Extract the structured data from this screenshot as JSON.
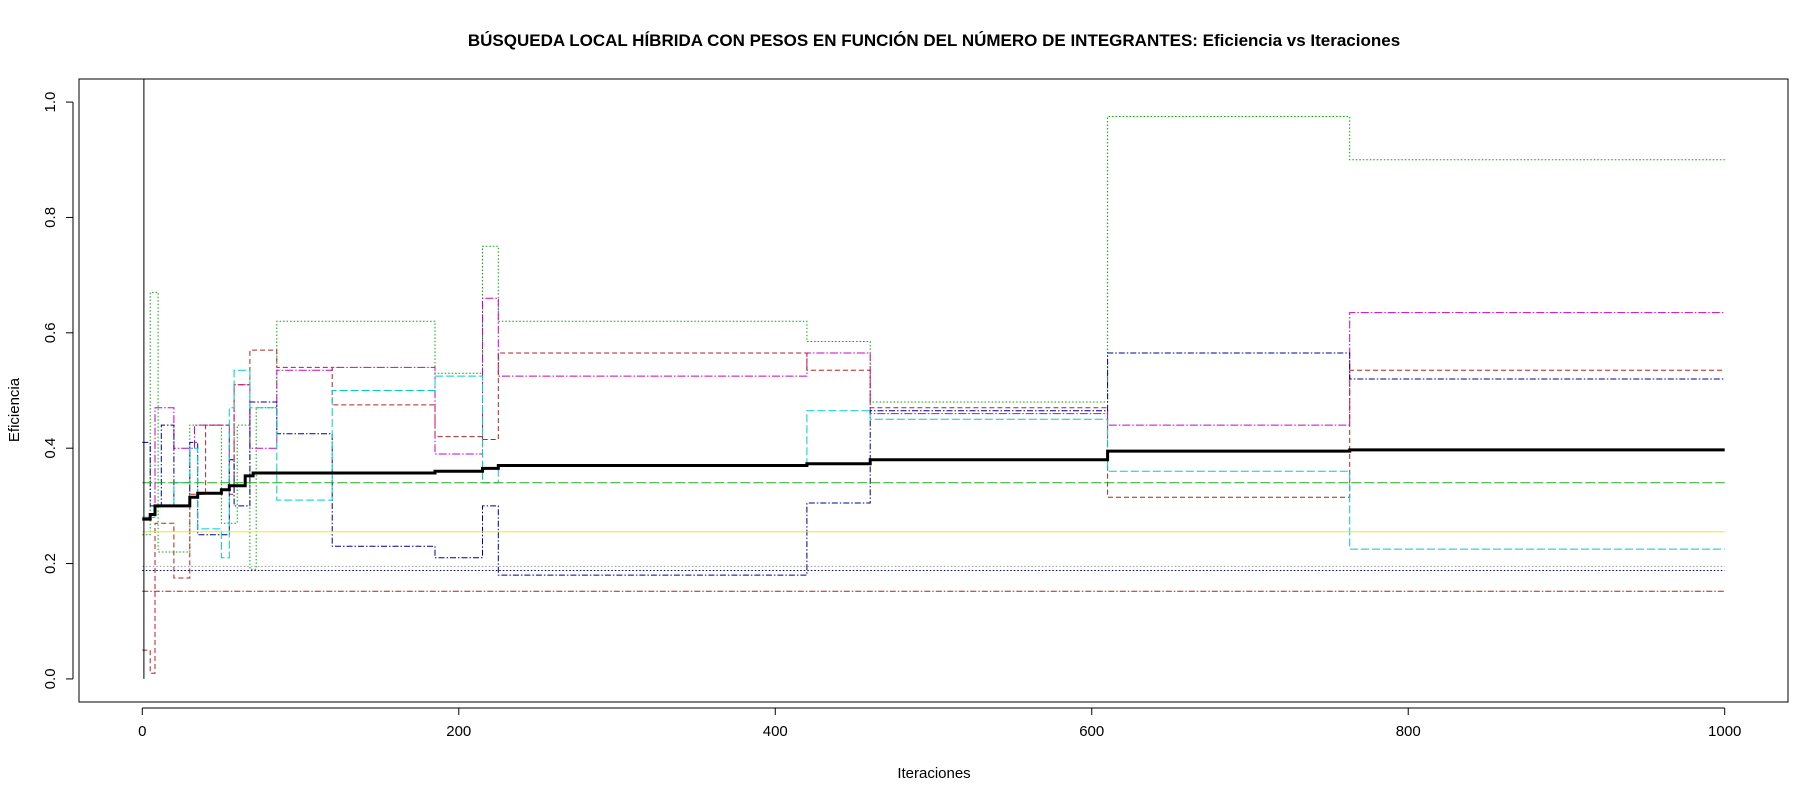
{
  "chart_data": {
    "type": "line",
    "title": "BÚSQUEDA LOCAL HÍBRIDA CON PESOS EN FUNCIÓN DEL NÚMERO DE INTEGRANTES: Eficiencia vs Iteraciones",
    "xlabel": "Iteraciones",
    "ylabel": "Eficiencia",
    "xlim": [
      -40,
      1040
    ],
    "ylim": [
      -0.04,
      1.04
    ],
    "xticks": [
      0,
      200,
      400,
      600,
      800,
      1000
    ],
    "yticks": [
      0.0,
      0.2,
      0.4,
      0.6,
      0.8,
      1.0
    ],
    "xtick_labels": [
      "0",
      "200",
      "400",
      "600",
      "800",
      "1000"
    ],
    "ytick_labels": [
      "0.0",
      "0.2",
      "0.4",
      "0.6",
      "0.8",
      "1.0"
    ],
    "grid": false,
    "legend": "none",
    "series": [
      {
        "color": "#00aa00",
        "dash": "1.5,2",
        "width": 1,
        "points": [
          [
            0,
            0.25
          ],
          [
            5,
            0.25
          ],
          [
            5,
            0.67
          ],
          [
            10,
            0.67
          ],
          [
            10,
            0.22
          ],
          [
            30,
            0.22
          ],
          [
            30,
            0.44
          ],
          [
            50,
            0.44
          ],
          [
            50,
            0.27
          ],
          [
            60,
            0.27
          ],
          [
            60,
            0.44
          ],
          [
            68,
            0.44
          ],
          [
            68,
            0.19
          ],
          [
            72,
            0.19
          ],
          [
            72,
            0.47
          ],
          [
            85,
            0.47
          ],
          [
            85,
            0.62
          ],
          [
            120,
            0.62
          ],
          [
            120,
            0.62
          ],
          [
            185,
            0.62
          ],
          [
            185,
            0.53
          ],
          [
            215,
            0.53
          ],
          [
            215,
            0.75
          ],
          [
            225,
            0.75
          ],
          [
            225,
            0.62
          ],
          [
            420,
            0.62
          ],
          [
            420,
            0.585
          ],
          [
            460,
            0.585
          ],
          [
            460,
            0.48
          ],
          [
            610,
            0.48
          ],
          [
            610,
            0.975
          ],
          [
            763,
            0.975
          ],
          [
            763,
            0.9
          ],
          [
            1000,
            0.9
          ]
        ]
      },
      {
        "color": "#cc00cc",
        "dash": "8,2,1.5,2",
        "width": 1,
        "points": [
          [
            0,
            0.28
          ],
          [
            8,
            0.28
          ],
          [
            8,
            0.47
          ],
          [
            20,
            0.47
          ],
          [
            20,
            0.4
          ],
          [
            33,
            0.4
          ],
          [
            33,
            0.44
          ],
          [
            55,
            0.44
          ],
          [
            55,
            0.38
          ],
          [
            58,
            0.38
          ],
          [
            58,
            0.51
          ],
          [
            68,
            0.51
          ],
          [
            68,
            0.4
          ],
          [
            85,
            0.4
          ],
          [
            85,
            0.535
          ],
          [
            120,
            0.535
          ],
          [
            120,
            0.54
          ],
          [
            185,
            0.54
          ],
          [
            185,
            0.39
          ],
          [
            215,
            0.39
          ],
          [
            215,
            0.66
          ],
          [
            225,
            0.66
          ],
          [
            225,
            0.525
          ],
          [
            420,
            0.525
          ],
          [
            420,
            0.565
          ],
          [
            460,
            0.565
          ],
          [
            460,
            0.46
          ],
          [
            610,
            0.46
          ],
          [
            610,
            0.44
          ],
          [
            763,
            0.44
          ],
          [
            763,
            0.635
          ],
          [
            1000,
            0.635
          ]
        ]
      },
      {
        "color": "#b22222",
        "dash": "5,3",
        "width": 1,
        "points": [
          [
            0,
            0.05
          ],
          [
            5,
            0.05
          ],
          [
            5,
            0.01
          ],
          [
            8,
            0.01
          ],
          [
            8,
            0.27
          ],
          [
            20,
            0.27
          ],
          [
            20,
            0.175
          ],
          [
            30,
            0.175
          ],
          [
            30,
            0.32
          ],
          [
            40,
            0.32
          ],
          [
            40,
            0.44
          ],
          [
            55,
            0.44
          ],
          [
            55,
            0.32
          ],
          [
            58,
            0.32
          ],
          [
            58,
            0.51
          ],
          [
            68,
            0.51
          ],
          [
            68,
            0.57
          ],
          [
            85,
            0.57
          ],
          [
            85,
            0.54
          ],
          [
            120,
            0.54
          ],
          [
            120,
            0.475
          ],
          [
            185,
            0.475
          ],
          [
            185,
            0.42
          ],
          [
            215,
            0.42
          ],
          [
            215,
            0.415
          ],
          [
            225,
            0.415
          ],
          [
            225,
            0.565
          ],
          [
            420,
            0.565
          ],
          [
            420,
            0.535
          ],
          [
            460,
            0.535
          ],
          [
            460,
            0.47
          ],
          [
            610,
            0.47
          ],
          [
            610,
            0.315
          ],
          [
            763,
            0.315
          ],
          [
            763,
            0.535
          ],
          [
            1000,
            0.535
          ]
        ]
      },
      {
        "color": "#000099",
        "dash": "6,2,1.5,2",
        "width": 1,
        "points": [
          [
            0,
            0.41
          ],
          [
            5,
            0.41
          ],
          [
            5,
            0.3
          ],
          [
            12,
            0.3
          ],
          [
            12,
            0.44
          ],
          [
            20,
            0.44
          ],
          [
            20,
            0.3
          ],
          [
            30,
            0.3
          ],
          [
            30,
            0.41
          ],
          [
            35,
            0.41
          ],
          [
            35,
            0.25
          ],
          [
            55,
            0.25
          ],
          [
            55,
            0.38
          ],
          [
            58,
            0.38
          ],
          [
            58,
            0.3
          ],
          [
            68,
            0.3
          ],
          [
            68,
            0.48
          ],
          [
            85,
            0.48
          ],
          [
            85,
            0.425
          ],
          [
            120,
            0.425
          ],
          [
            120,
            0.23
          ],
          [
            185,
            0.23
          ],
          [
            185,
            0.21
          ],
          [
            215,
            0.21
          ],
          [
            215,
            0.3
          ],
          [
            225,
            0.3
          ],
          [
            225,
            0.18
          ],
          [
            420,
            0.18
          ],
          [
            420,
            0.305
          ],
          [
            460,
            0.305
          ],
          [
            460,
            0.465
          ],
          [
            610,
            0.465
          ],
          [
            610,
            0.565
          ],
          [
            763,
            0.565
          ],
          [
            763,
            0.52
          ],
          [
            1000,
            0.52
          ]
        ]
      },
      {
        "color": "#00cccc",
        "dash": "8,3",
        "width": 1,
        "points": [
          [
            0,
            0.28
          ],
          [
            8,
            0.28
          ],
          [
            8,
            0.3
          ],
          [
            20,
            0.3
          ],
          [
            20,
            0.34
          ],
          [
            30,
            0.34
          ],
          [
            30,
            0.4
          ],
          [
            35,
            0.4
          ],
          [
            35,
            0.26
          ],
          [
            50,
            0.26
          ],
          [
            50,
            0.21
          ],
          [
            55,
            0.21
          ],
          [
            55,
            0.47
          ],
          [
            58,
            0.47
          ],
          [
            58,
            0.535
          ],
          [
            68,
            0.535
          ],
          [
            68,
            0.47
          ],
          [
            85,
            0.47
          ],
          [
            85,
            0.31
          ],
          [
            120,
            0.31
          ],
          [
            120,
            0.5
          ],
          [
            185,
            0.5
          ],
          [
            185,
            0.525
          ],
          [
            215,
            0.525
          ],
          [
            215,
            0.34
          ],
          [
            225,
            0.34
          ],
          [
            225,
            0.37
          ],
          [
            420,
            0.37
          ],
          [
            420,
            0.465
          ],
          [
            460,
            0.465
          ],
          [
            460,
            0.45
          ],
          [
            610,
            0.45
          ],
          [
            610,
            0.36
          ],
          [
            763,
            0.36
          ],
          [
            763,
            0.225
          ],
          [
            1000,
            0.225
          ]
        ]
      },
      {
        "color": "#22aa22",
        "dash": "10,3",
        "width": 1,
        "points": [
          [
            0,
            0.34
          ],
          [
            1000,
            0.34
          ]
        ]
      },
      {
        "color": "#eeee00",
        "dash": "",
        "width": 1,
        "points": [
          [
            0,
            0.255
          ],
          [
            1000,
            0.255
          ]
        ]
      },
      {
        "color": "#999999",
        "dash": "1.5,2",
        "width": 1,
        "points": [
          [
            0,
            0.195
          ],
          [
            1000,
            0.195
          ]
        ]
      },
      {
        "color": "#000066",
        "dash": "1.5,2",
        "width": 1,
        "points": [
          [
            0,
            0.188
          ],
          [
            1000,
            0.188
          ]
        ]
      },
      {
        "color": "#aa2222",
        "dash": "6,2,1.5,2",
        "width": 1,
        "points": [
          [
            0,
            0.152
          ],
          [
            1000,
            0.152
          ]
        ]
      },
      {
        "color": "#000000",
        "dash": "",
        "width": 1,
        "points": [
          [
            1,
            0.0
          ],
          [
            1,
            1.04
          ]
        ]
      },
      {
        "color": "#000000",
        "dash": "",
        "width": 3,
        "points": [
          [
            0,
            0.277
          ],
          [
            5,
            0.277
          ],
          [
            5,
            0.285
          ],
          [
            8,
            0.285
          ],
          [
            8,
            0.3
          ],
          [
            30,
            0.3
          ],
          [
            30,
            0.315
          ],
          [
            35,
            0.315
          ],
          [
            35,
            0.322
          ],
          [
            50,
            0.322
          ],
          [
            50,
            0.328
          ],
          [
            55,
            0.328
          ],
          [
            55,
            0.335
          ],
          [
            65,
            0.335
          ],
          [
            65,
            0.352
          ],
          [
            70,
            0.352
          ],
          [
            70,
            0.357
          ],
          [
            185,
            0.357
          ],
          [
            185,
            0.36
          ],
          [
            215,
            0.36
          ],
          [
            215,
            0.365
          ],
          [
            225,
            0.365
          ],
          [
            225,
            0.37
          ],
          [
            420,
            0.37
          ],
          [
            420,
            0.373
          ],
          [
            460,
            0.373
          ],
          [
            460,
            0.38
          ],
          [
            610,
            0.38
          ],
          [
            610,
            0.395
          ],
          [
            763,
            0.395
          ],
          [
            763,
            0.397
          ],
          [
            1000,
            0.397
          ]
        ]
      }
    ]
  }
}
